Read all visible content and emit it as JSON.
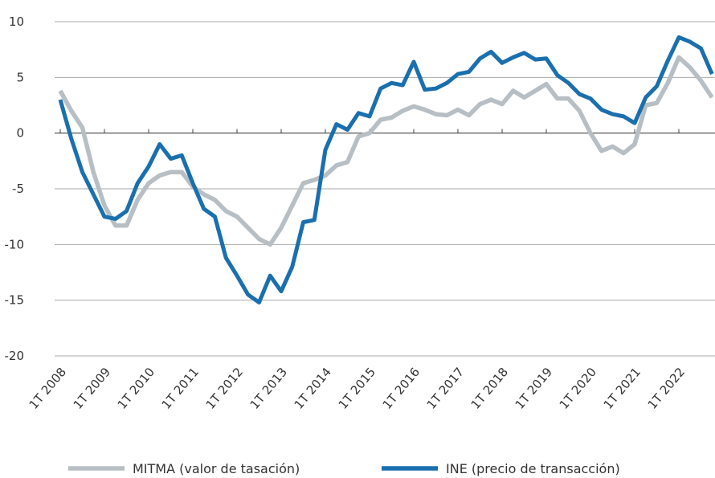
{
  "chart_data": {
    "type": "line",
    "categories": [
      "1T 2008",
      null,
      null,
      null,
      "1T 2009",
      null,
      null,
      null,
      "1T 2010",
      null,
      null,
      null,
      "1T 2011",
      null,
      null,
      null,
      "1T 2012",
      null,
      null,
      null,
      "1T 2013",
      null,
      null,
      null,
      "1T 2014",
      null,
      null,
      null,
      "1T 2015",
      null,
      null,
      null,
      "1T 2016",
      null,
      null,
      null,
      "1T 2017",
      null,
      null,
      null,
      "1T 2018",
      null,
      null,
      null,
      "1T 2019",
      null,
      null,
      null,
      "1T 2020",
      null,
      null,
      null,
      "1T 2021",
      null,
      null,
      null,
      "1T 2022",
      null,
      null,
      null
    ],
    "series": [
      {
        "name": "MITMA (valor de tasación)",
        "color": "#b7bfc4",
        "values": [
          3.8,
          2,
          0.5,
          -3.5,
          -6.5,
          -8.3,
          -8.3,
          -6,
          -4.5,
          -3.8,
          -3.5,
          -3.5,
          -4.8,
          -5.5,
          -6,
          -7,
          -7.5,
          -8.5,
          -9.5,
          -10,
          -8.5,
          -6.5,
          -4.5,
          -4.2,
          -3.8,
          -2.9,
          -2.6,
          -0.3,
          0,
          1.2,
          1.4,
          2,
          2.4,
          2.1,
          1.7,
          1.6,
          2.1,
          1.6,
          2.6,
          3,
          2.6,
          3.8,
          3.2,
          3.8,
          4.4,
          3.1,
          3.1,
          2,
          0,
          -1.6,
          -1.2,
          -1.8,
          -1,
          2.5,
          2.7,
          4.5,
          6.8,
          5.9,
          4.7,
          3.2
        ]
      },
      {
        "name": "INE (precio de transacción)",
        "color": "#1a6fae",
        "values": [
          3,
          -0.5,
          -3.5,
          -5.5,
          -7.5,
          -7.7,
          -7,
          -4.5,
          -3,
          -1,
          -2.3,
          -2,
          -4.5,
          -6.8,
          -7.5,
          -11.2,
          -12.8,
          -14.5,
          -15.2,
          -12.8,
          -14.2,
          -12,
          -8,
          -7.8,
          -1.5,
          0.8,
          0.3,
          1.8,
          1.5,
          4,
          4.5,
          4.3,
          6.4,
          3.9,
          4,
          4.5,
          5.3,
          5.5,
          6.7,
          7.3,
          6.3,
          6.8,
          7.2,
          6.6,
          6.7,
          5.2,
          4.5,
          3.5,
          3.1,
          2.1,
          1.7,
          1.5,
          0.9,
          3.2,
          4.2,
          6.5,
          8.6,
          8.2,
          7.6,
          5.3
        ]
      }
    ],
    "ylim": [
      -20,
      10
    ],
    "yticks": [
      10,
      5,
      0,
      -5,
      -10,
      -15,
      -20
    ],
    "grid": true
  }
}
